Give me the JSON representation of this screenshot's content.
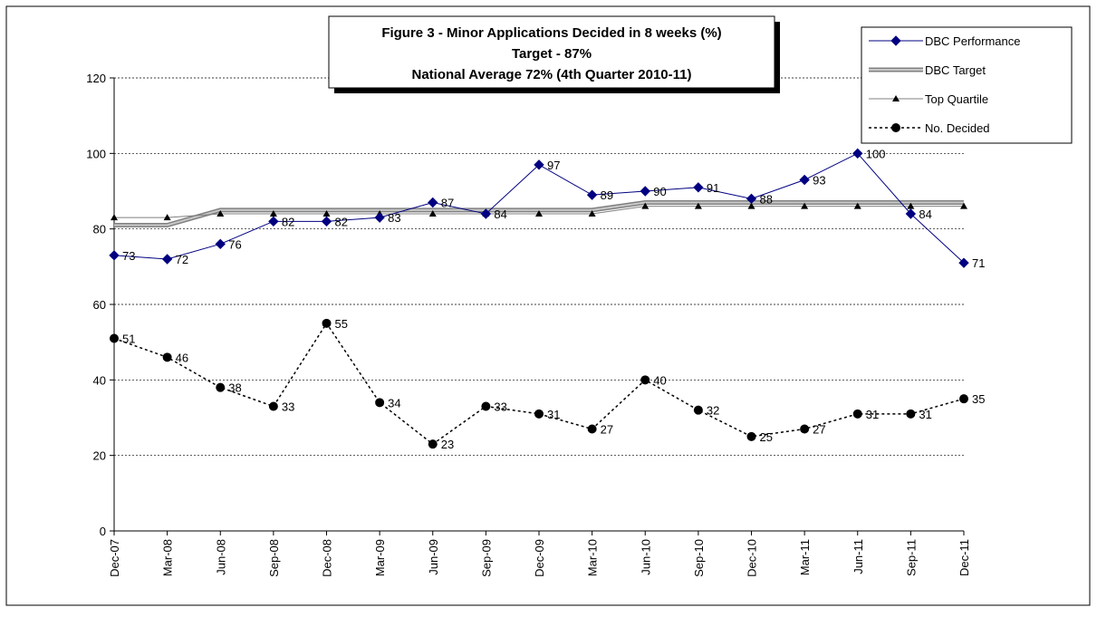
{
  "chart_data": {
    "type": "line",
    "title": [
      "Figure 3 - Minor Applications Decided in 8 weeks (%)",
      "Target - 87%",
      "National Average 72% (4th Quarter 2010-11)"
    ],
    "categories": [
      "Dec-07",
      "Mar-08",
      "Jun-08",
      "Sep-08",
      "Dec-08",
      "Mar-09",
      "Jun-09",
      "Sep-09",
      "Dec-09",
      "Mar-10",
      "Jun-10",
      "Sep-10",
      "Dec-10",
      "Mar-11",
      "Jun-11",
      "Sep-11",
      "Dec-11"
    ],
    "series": [
      {
        "name": "DBC Performance",
        "color": "#000080",
        "marker": "diamond",
        "labels": true,
        "values": [
          73,
          72,
          76,
          82,
          82,
          83,
          87,
          84,
          97,
          89,
          90,
          91,
          88,
          93,
          100,
          84,
          71
        ]
      },
      {
        "name": "DBC Target",
        "color": "#a0a0a0",
        "marker": "none",
        "labels": false,
        "values": [
          81,
          81,
          85,
          85,
          85,
          85,
          85,
          85,
          85,
          85,
          87,
          87,
          87,
          87,
          87,
          87,
          87
        ]
      },
      {
        "name": "Top Quartile",
        "color": "#808080",
        "marker": "triangle",
        "labels": false,
        "values": [
          83,
          83,
          84,
          84,
          84,
          84,
          84,
          84,
          84,
          84,
          86,
          86,
          86,
          86,
          86,
          86,
          86
        ]
      },
      {
        "name": "No. Decided",
        "color": "#000000",
        "marker": "circle",
        "dashed": true,
        "labels": true,
        "values": [
          51,
          46,
          38,
          33,
          55,
          34,
          23,
          33,
          31,
          27,
          40,
          32,
          25,
          27,
          31,
          31,
          35
        ]
      }
    ],
    "ylim": [
      0,
      120
    ],
    "yticks": [
      0,
      20,
      40,
      60,
      80,
      100,
      120
    ],
    "grid": true,
    "legend": "top-right"
  }
}
